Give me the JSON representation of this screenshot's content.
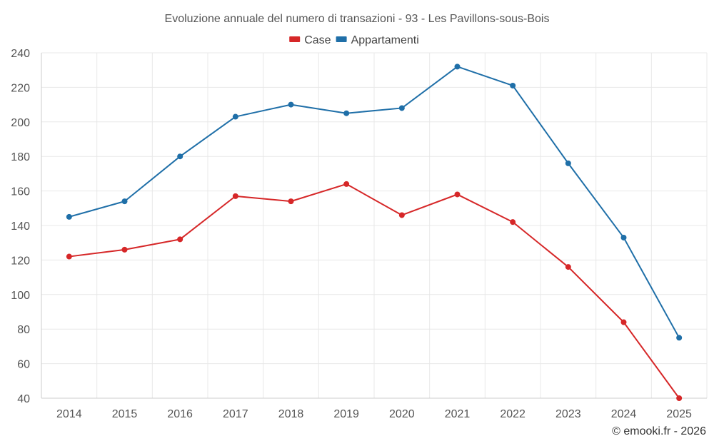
{
  "chart_data": {
    "type": "line",
    "title": "Evoluzione annuale del numero di transazioni - 93 - Les Pavillons-sous-Bois",
    "categories": [
      "2014",
      "2015",
      "2016",
      "2017",
      "2018",
      "2019",
      "2020",
      "2021",
      "2022",
      "2023",
      "2024",
      "2025"
    ],
    "series": [
      {
        "name": "Case",
        "color": "#d62728",
        "values": [
          122,
          126,
          132,
          157,
          154,
          164,
          146,
          158,
          142,
          116,
          84,
          40
        ]
      },
      {
        "name": "Appartamenti",
        "color": "#1f6fa8",
        "values": [
          145,
          154,
          180,
          203,
          210,
          205,
          208,
          232,
          221,
          176,
          133,
          75
        ]
      }
    ],
    "ylim": [
      40,
      240
    ],
    "yticks": [
      40,
      60,
      80,
      100,
      120,
      140,
      160,
      180,
      200,
      220,
      240
    ],
    "xlabel": "",
    "ylabel": "",
    "grid": true,
    "legend": "top-center"
  },
  "credit": "© emooki.fr - 2026"
}
